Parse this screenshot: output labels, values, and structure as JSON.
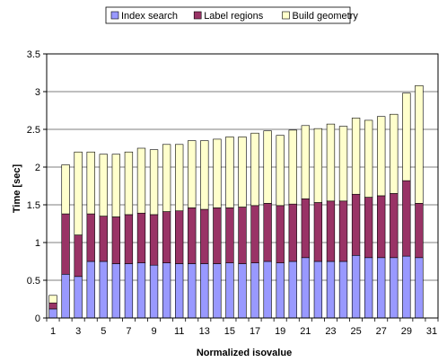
{
  "chart_data": {
    "type": "bar",
    "stacked": true,
    "xlabel": "Normalized isovalue",
    "ylabel": "Time [sec]",
    "ylim": [
      0,
      3.5
    ],
    "yticks": [
      "0",
      "0.5",
      "1",
      "1.5",
      "2",
      "2.5",
      "3",
      "3.5"
    ],
    "xtick_labels": [
      "1",
      "3",
      "5",
      "7",
      "9",
      "11",
      "13",
      "15",
      "17",
      "19",
      "21",
      "23",
      "25",
      "27",
      "29",
      "31"
    ],
    "grid": "horizontal",
    "legend_position": "top",
    "categories": [
      1,
      2,
      3,
      4,
      5,
      6,
      7,
      8,
      9,
      10,
      11,
      12,
      13,
      14,
      15,
      16,
      17,
      18,
      19,
      20,
      21,
      22,
      23,
      24,
      25,
      26,
      27,
      28,
      29,
      30,
      31
    ],
    "series": [
      {
        "name": "Index search",
        "color": "#9999ff",
        "values": [
          0.12,
          0.58,
          0.55,
          0.75,
          0.75,
          0.72,
          0.72,
          0.73,
          0.7,
          0.73,
          0.72,
          0.72,
          0.72,
          0.72,
          0.73,
          0.72,
          0.73,
          0.75,
          0.73,
          0.75,
          0.8,
          0.75,
          0.75,
          0.75,
          0.83,
          0.8,
          0.8,
          0.8,
          0.82,
          0.8,
          0
        ]
      },
      {
        "name": "Label regions",
        "color": "#993366",
        "values": [
          0.08,
          0.8,
          0.55,
          0.63,
          0.6,
          0.62,
          0.65,
          0.66,
          0.67,
          0.68,
          0.7,
          0.74,
          0.72,
          0.74,
          0.73,
          0.75,
          0.76,
          0.77,
          0.76,
          0.76,
          0.78,
          0.78,
          0.8,
          0.8,
          0.81,
          0.8,
          0.82,
          0.85,
          1.0,
          0.72,
          0
        ]
      },
      {
        "name": "Build geometry",
        "color": "#ffffcc",
        "values": [
          0.1,
          0.65,
          1.1,
          0.82,
          0.82,
          0.83,
          0.83,
          0.86,
          0.86,
          0.89,
          0.88,
          0.89,
          0.91,
          0.91,
          0.94,
          0.93,
          0.96,
          0.96,
          0.93,
          0.98,
          0.97,
          0.98,
          1.02,
          0.99,
          1.01,
          1.02,
          1.05,
          1.05,
          1.16,
          1.56,
          0
        ]
      }
    ]
  }
}
